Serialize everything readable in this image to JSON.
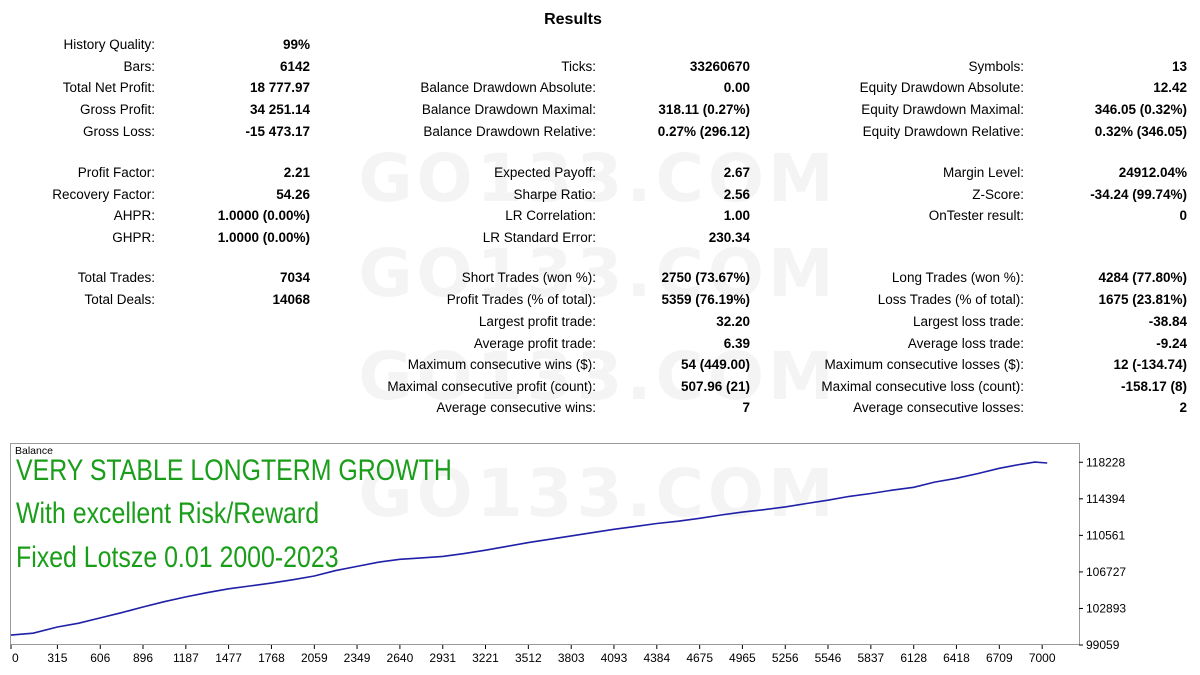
{
  "report": {
    "title": "Results",
    "watermark": "GO133.COM",
    "col1": [
      {
        "label": "History Quality:",
        "value": "99%"
      },
      {
        "label": "Bars:",
        "value": "6142"
      },
      {
        "label": "Total Net Profit:",
        "value": "18 777.97"
      },
      {
        "label": "Gross Profit:",
        "value": "34 251.14"
      },
      {
        "label": "Gross Loss:",
        "value": "-15 473.17"
      },
      {
        "label": "Profit Factor:",
        "value": "2.21"
      },
      {
        "label": "Recovery Factor:",
        "value": "54.26"
      },
      {
        "label": "AHPR:",
        "value": "1.0000 (0.00%)"
      },
      {
        "label": "GHPR:",
        "value": "1.0000 (0.00%)"
      },
      {
        "label": "Total Trades:",
        "value": "7034"
      },
      {
        "label": "Total Deals:",
        "value": "14068"
      }
    ],
    "col2": [
      {
        "label": "Ticks:",
        "value": "33260670"
      },
      {
        "label": "Balance Drawdown Absolute:",
        "value": "0.00"
      },
      {
        "label": "Balance Drawdown Maximal:",
        "value": "318.11 (0.27%)"
      },
      {
        "label": "Balance Drawdown Relative:",
        "value": "0.27% (296.12)"
      },
      {
        "label": "Expected Payoff:",
        "value": "2.67"
      },
      {
        "label": "Sharpe Ratio:",
        "value": "2.56"
      },
      {
        "label": "LR Correlation:",
        "value": "1.00"
      },
      {
        "label": "LR Standard Error:",
        "value": "230.34"
      },
      {
        "label": "Short Trades (won %):",
        "value": "2750 (73.67%)"
      },
      {
        "label": "Profit Trades (% of total):",
        "value": "5359 (76.19%)"
      },
      {
        "label": "Largest profit trade:",
        "value": "32.20"
      },
      {
        "label": "Average profit trade:",
        "value": "6.39"
      },
      {
        "label": "Maximum consecutive wins ($):",
        "value": "54 (449.00)"
      },
      {
        "label": "Maximal consecutive profit (count):",
        "value": "507.96 (21)"
      },
      {
        "label": "Average consecutive wins:",
        "value": "7"
      }
    ],
    "col3": [
      {
        "label": "Symbols:",
        "value": "13"
      },
      {
        "label": "Equity Drawdown Absolute:",
        "value": "12.42"
      },
      {
        "label": "Equity Drawdown Maximal:",
        "value": "346.05 (0.32%)"
      },
      {
        "label": "Equity Drawdown Relative:",
        "value": "0.32% (346.05)"
      },
      {
        "label": "Margin Level:",
        "value": "24912.04%"
      },
      {
        "label": "Z-Score:",
        "value": "-34.24 (99.74%)"
      },
      {
        "label": "OnTester result:",
        "value": "0"
      },
      {
        "label": "Long Trades (won %):",
        "value": "4284 (77.80%)"
      },
      {
        "label": "Loss Trades (% of total):",
        "value": "1675 (23.81%)"
      },
      {
        "label": "Largest loss trade:",
        "value": "-38.84"
      },
      {
        "label": "Average loss trade:",
        "value": "-9.24"
      },
      {
        "label": "Maximum consecutive losses ($):",
        "value": "12 (-134.74)"
      },
      {
        "label": "Maximal consecutive loss (count):",
        "value": "-158.17 (8)"
      },
      {
        "label": "Average consecutive losses:",
        "value": "2"
      }
    ]
  },
  "chart_data": {
    "type": "line",
    "title": "",
    "caption": "Balance",
    "xlabel": "",
    "ylabel": "",
    "xlim": [
      0,
      7250
    ],
    "ylim": [
      99059,
      120145
    ],
    "x_ticks": [
      "0",
      "315",
      "606",
      "896",
      "1187",
      "1477",
      "1768",
      "2059",
      "2349",
      "2640",
      "2931",
      "3221",
      "3512",
      "3803",
      "4093",
      "4384",
      "4675",
      "4965",
      "5256",
      "5546",
      "5837",
      "6128",
      "6418",
      "6709",
      "7000"
    ],
    "y_ticks": [
      "99059",
      "102893",
      "106727",
      "110561",
      "114394",
      "118228"
    ],
    "grid": false,
    "legend": "none",
    "line_color": "#1f1fa8",
    "overlay_color": "#1a9e1a",
    "overlay_text": [
      "VERY STABLE LONGTERM GROWTH",
      "With excellent Risk/Reward",
      "Fixed Lotsze 0.01 2000-2023"
    ],
    "series": [
      {
        "name": "",
        "x": [
          0,
          150,
          315,
          460,
          606,
          750,
          896,
          1040,
          1187,
          1330,
          1477,
          1620,
          1768,
          1910,
          2059,
          2200,
          2349,
          2495,
          2640,
          2785,
          2931,
          3075,
          3221,
          3365,
          3512,
          3655,
          3803,
          3950,
          4093,
          4240,
          4384,
          4530,
          4675,
          4820,
          4965,
          5110,
          5256,
          5400,
          5546,
          5690,
          5837,
          5980,
          6128,
          6270,
          6418,
          6565,
          6709,
          6850,
          6950,
          7034
        ],
        "y": [
          100100,
          100300,
          100950,
          101350,
          101900,
          102450,
          103050,
          103600,
          104100,
          104550,
          104950,
          105250,
          105550,
          105900,
          106300,
          106850,
          107300,
          107750,
          108050,
          108200,
          108350,
          108650,
          109000,
          109400,
          109800,
          110150,
          110500,
          110850,
          111200,
          111500,
          111800,
          112050,
          112350,
          112700,
          113000,
          113250,
          113550,
          113900,
          114250,
          114650,
          114950,
          115300,
          115600,
          116150,
          116550,
          117050,
          117600,
          118000,
          118250,
          118150
        ]
      }
    ]
  }
}
